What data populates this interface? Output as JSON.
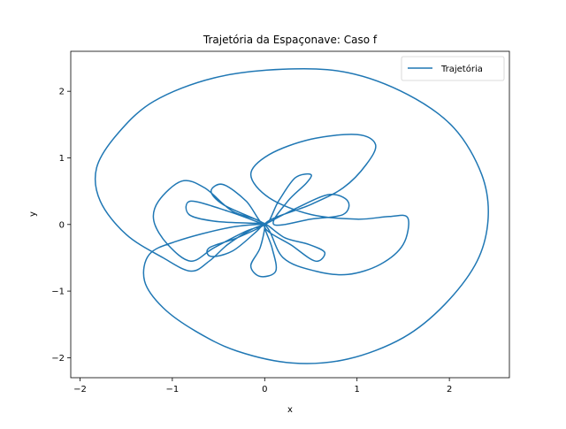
{
  "chart_data": {
    "type": "line",
    "title": "Trajetória da Espaçonave: Caso f",
    "xlabel": "x",
    "ylabel": "y",
    "xlim": [
      -2.1,
      2.65
    ],
    "ylim": [
      -2.3,
      2.6
    ],
    "xticks": [
      -2,
      -1,
      0,
      1,
      2
    ],
    "yticks": [
      -2,
      -1,
      0,
      1,
      2
    ],
    "grid": false,
    "legend_position": "top-right",
    "series": [
      {
        "name": "Trajetória",
        "color": "#1f77b4",
        "points": [
          [
            0.0,
            0.0
          ],
          [
            0.35,
            0.25
          ],
          [
            0.7,
            0.45
          ],
          [
            0.9,
            0.35
          ],
          [
            0.85,
            0.15
          ],
          [
            0.5,
            0.08
          ],
          [
            0.1,
            0.0
          ],
          [
            0.25,
            0.35
          ],
          [
            0.45,
            0.62
          ],
          [
            0.5,
            0.75
          ],
          [
            0.33,
            0.7
          ],
          [
            0.15,
            0.35
          ],
          [
            0.0,
            0.0
          ],
          [
            -0.2,
            0.35
          ],
          [
            -0.45,
            0.6
          ],
          [
            -0.58,
            0.5
          ],
          [
            -0.45,
            0.3
          ],
          [
            -0.1,
            0.08
          ],
          [
            0.0,
            0.0
          ],
          [
            -0.4,
            0.2
          ],
          [
            -0.8,
            0.35
          ],
          [
            -0.82,
            0.15
          ],
          [
            -0.55,
            0.05
          ],
          [
            -0.15,
            0.02
          ],
          [
            0.0,
            0.0
          ],
          [
            -0.3,
            -0.2
          ],
          [
            -0.6,
            -0.35
          ],
          [
            -0.58,
            -0.48
          ],
          [
            -0.35,
            -0.4
          ],
          [
            -0.1,
            -0.12
          ],
          [
            0.0,
            0.0
          ],
          [
            -0.05,
            -0.35
          ],
          [
            -0.15,
            -0.62
          ],
          [
            -0.05,
            -0.78
          ],
          [
            0.12,
            -0.7
          ],
          [
            0.08,
            -0.35
          ],
          [
            0.0,
            0.0
          ],
          [
            0.22,
            -0.2
          ],
          [
            0.48,
            -0.3
          ],
          [
            0.65,
            -0.42
          ],
          [
            0.55,
            -0.55
          ],
          [
            0.3,
            -0.32
          ],
          [
            0.0,
            0.0
          ],
          [
            0.5,
            0.3
          ],
          [
            0.85,
            0.55
          ],
          [
            1.1,
            0.9
          ],
          [
            1.2,
            1.2
          ],
          [
            1.0,
            1.35
          ],
          [
            0.5,
            1.28
          ],
          [
            0.05,
            1.05
          ],
          [
            -0.15,
            0.75
          ],
          [
            0.05,
            0.4
          ],
          [
            0.5,
            0.15
          ],
          [
            1.0,
            0.08
          ],
          [
            1.35,
            0.12
          ],
          [
            1.55,
            0.1
          ],
          [
            1.5,
            -0.3
          ],
          [
            1.25,
            -0.6
          ],
          [
            0.9,
            -0.75
          ],
          [
            0.55,
            -0.7
          ],
          [
            0.2,
            -0.5
          ],
          [
            0.0,
            0.0
          ],
          [
            -0.35,
            0.2
          ],
          [
            -0.65,
            0.55
          ],
          [
            -0.9,
            0.65
          ],
          [
            -1.15,
            0.35
          ],
          [
            -1.2,
            0.05
          ],
          [
            -1.05,
            -0.3
          ],
          [
            -0.8,
            -0.55
          ],
          [
            -0.55,
            -0.35
          ],
          [
            -0.2,
            -0.1
          ],
          [
            0.0,
            0.0
          ],
          [
            -0.4,
            -0.05
          ],
          [
            -0.95,
            -0.25
          ],
          [
            -1.25,
            -0.45
          ],
          [
            -1.3,
            -0.85
          ],
          [
            -1.1,
            -1.25
          ],
          [
            -0.75,
            -1.6
          ],
          [
            -0.3,
            -1.9
          ],
          [
            0.3,
            -2.08
          ],
          [
            0.9,
            -2.02
          ],
          [
            1.5,
            -1.7
          ],
          [
            1.95,
            -1.2
          ],
          [
            2.3,
            -0.55
          ],
          [
            2.42,
            0.1
          ],
          [
            2.35,
            0.75
          ],
          [
            2.05,
            1.45
          ],
          [
            1.55,
            1.95
          ],
          [
            0.9,
            2.28
          ],
          [
            0.2,
            2.33
          ],
          [
            -0.55,
            2.2
          ],
          [
            -1.2,
            1.85
          ],
          [
            -1.6,
            1.35
          ],
          [
            -1.82,
            0.85
          ],
          [
            -1.78,
            0.35
          ],
          [
            -1.5,
            -0.15
          ],
          [
            -1.1,
            -0.5
          ],
          [
            -0.8,
            -0.7
          ],
          [
            -0.6,
            -0.55
          ],
          [
            -0.4,
            -0.3
          ],
          [
            -0.15,
            -0.08
          ],
          [
            0.0,
            0.0
          ]
        ]
      }
    ]
  },
  "legend": {
    "label": "Trajetória"
  }
}
